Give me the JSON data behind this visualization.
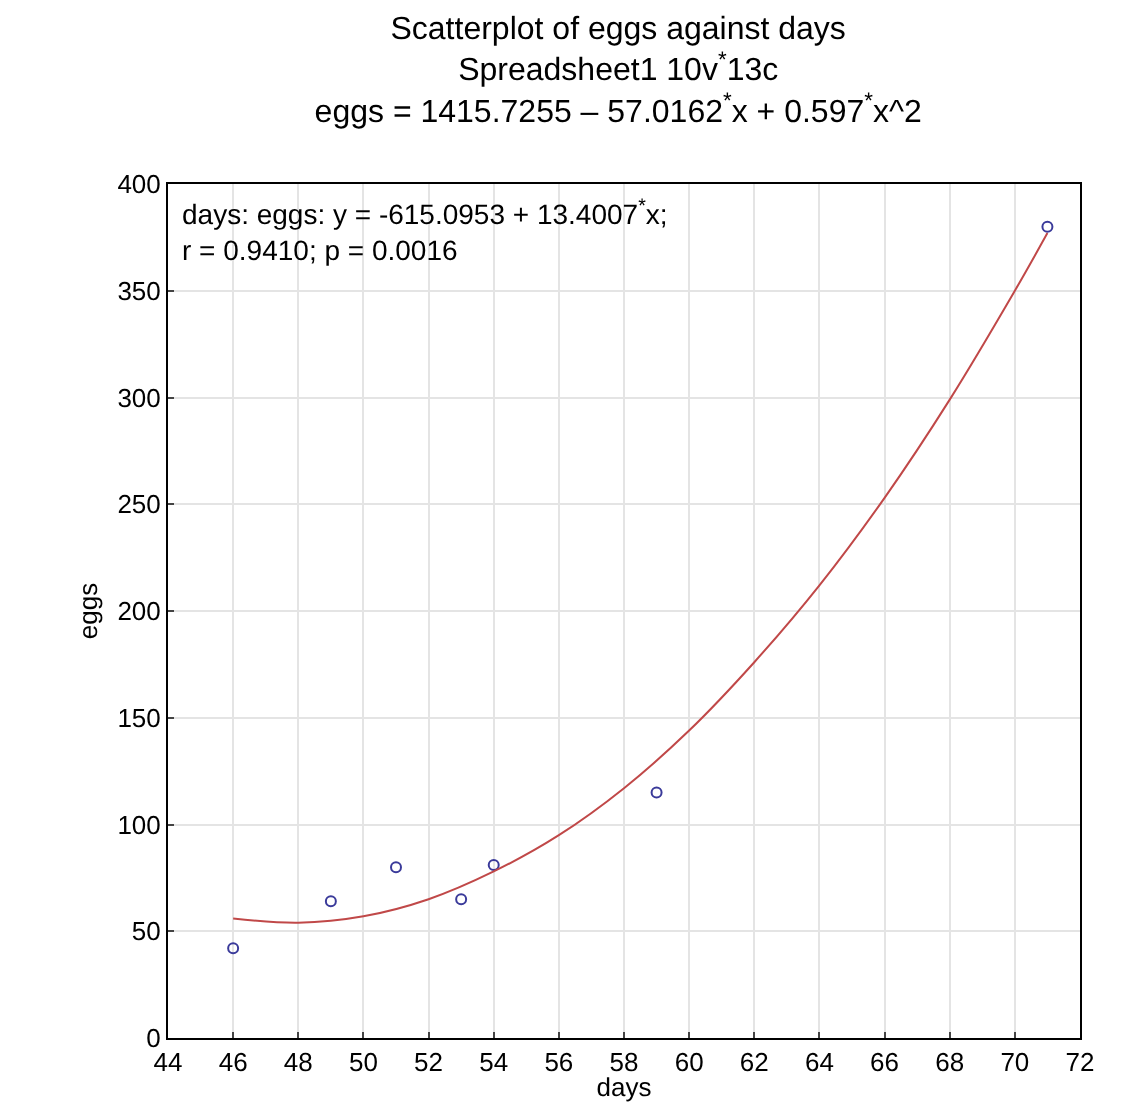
{
  "chart_data": {
    "type": "scatter",
    "title": "Scatterplot of eggs against days\nSpreadsheet1 10v$^{*}$13c\neggs = 1415.7255 – 57.0162$^{*}$x + 0.597$^{*}$x^2",
    "xlabel": "days",
    "ylabel": "eggs",
    "annotations": [
      "days: eggs: y = -615.0953 + 13.4007$^{*}$x;\nr = 0.9410; p = 0.0016"
    ],
    "series": [
      {
        "type": "scatter",
        "color": "#3a3a9a",
        "marker": "circle",
        "x": [
          46,
          49,
          51,
          53,
          54,
          59,
          71
        ],
        "values": [
          42,
          64,
          80,
          65,
          81,
          115,
          380
        ]
      },
      {
        "type": "line",
        "color": "#c04848",
        "marker": "none",
        "line_style": "solid",
        "x": [
          46,
          48,
          50,
          52,
          54,
          56,
          58,
          60,
          62,
          64,
          66,
          68,
          70,
          71
        ],
        "values": [
          56,
          54,
          57,
          65,
          78,
          95,
          117,
          144,
          176,
          212,
          253,
          299,
          350,
          377
        ]
      }
    ],
    "xlim": [
      44,
      72
    ],
    "xticks": [
      44,
      46,
      48,
      50,
      52,
      54,
      56,
      58,
      60,
      62,
      64,
      66,
      68,
      70,
      72
    ],
    "ylim": [
      0,
      400
    ],
    "yticks": [
      0,
      50,
      100,
      150,
      200,
      250,
      300,
      350,
      400
    ],
    "grid": true
  }
}
